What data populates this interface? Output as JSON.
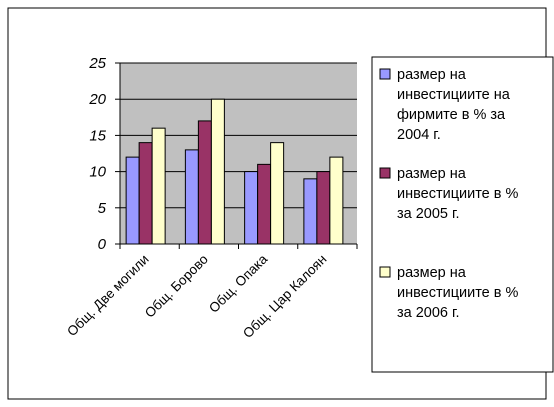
{
  "chart_data": {
    "type": "bar",
    "title": "",
    "xlabel": "",
    "ylabel": "",
    "ylim": [
      0,
      25
    ],
    "yticks": [
      "0",
      "5",
      "10",
      "15",
      "20",
      "25"
    ],
    "categories": [
      "Общ. Две могили",
      "Общ. Борово",
      "Общ. Опака",
      "Общ. Цар Калоян"
    ],
    "series": [
      {
        "name": "размер на инвестициите на фирмите в % за 2004 г.",
        "legend_lines": [
          "размер на",
          "инвестициите на",
          "фирмите в % за",
          "2004 г."
        ],
        "color": "#9999FF",
        "values": [
          12,
          13,
          10,
          9
        ]
      },
      {
        "name": "размер на инвестициите в % за 2005 г.",
        "legend_lines": [
          "размер на",
          "инвестициите в %",
          "за 2005 г."
        ],
        "color": "#993366",
        "values": [
          14,
          17,
          11,
          10
        ]
      },
      {
        "name": "размер на инвестициите в % за 2006 г.",
        "legend_lines": [
          "размер на",
          "инвестициите в %",
          "за 2006 г."
        ],
        "color": "#FFFFCC",
        "values": [
          16,
          20,
          14,
          12
        ]
      }
    ],
    "grid": true,
    "legend": "right",
    "plot_area_color": "#C0C0C0"
  }
}
